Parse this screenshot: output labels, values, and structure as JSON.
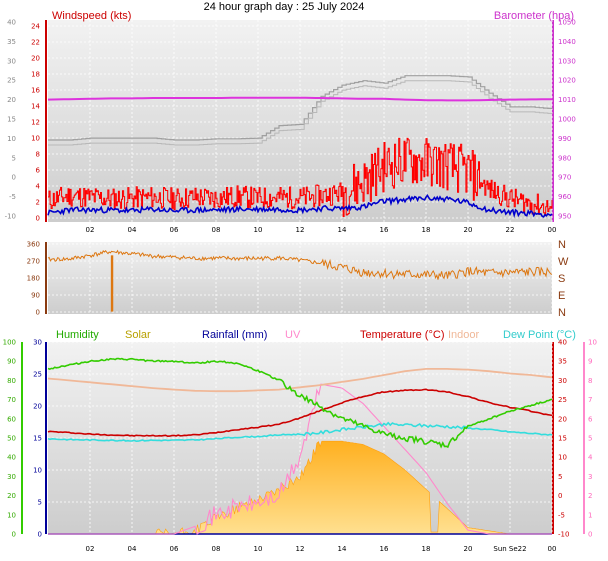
{
  "title": "24 hour graph day : 25 July 2024",
  "colors": {
    "plot_bg_top": "#efefef",
    "plot_bg_bottom": "#cfcfcf",
    "wind_axis": "#cc0000",
    "baro_axis": "#cc33cc",
    "gust": "#ff0000",
    "wind": "#0000cc",
    "baro": "#dd33dd",
    "gray": "#a0a0a0",
    "direction": "#dd7711",
    "humidity": "#33cc00",
    "solar": "#ffc040",
    "rain": "#000099",
    "uv": "#ff88cc",
    "temp": "#cc0000",
    "indoor": "#f0b898",
    "dew": "#33dddd"
  },
  "chart_data": [
    {
      "type": "line",
      "name": "wind-barometer",
      "left_label": "Windspeed (kts)",
      "right_label": "Barometer (hpa)",
      "x_ticks": [
        "02",
        "04",
        "06",
        "08",
        "10",
        "12",
        "14",
        "16",
        "18",
        "20",
        "22",
        "00"
      ],
      "left_ticks": [
        24,
        22,
        20,
        18,
        16,
        14,
        12,
        10,
        8,
        6,
        4,
        2,
        0
      ],
      "left_gray_ticks": [
        40,
        35,
        30,
        25,
        20,
        15,
        10,
        5,
        0,
        -5,
        -10
      ],
      "right_ticks": [
        1050,
        1040,
        1030,
        1020,
        1010,
        1000,
        990,
        980,
        970,
        960,
        950
      ],
      "x": [
        0,
        1,
        2,
        3,
        4,
        5,
        6,
        7,
        8,
        9,
        10,
        11,
        12,
        13,
        14,
        15,
        16,
        17,
        18,
        19,
        20,
        21,
        22,
        23,
        24
      ],
      "series": [
        {
          "name": "gust",
          "values": [
            2.2,
            2.8,
            2.6,
            2.4,
            2.5,
            2.6,
            2.4,
            2.6,
            2.5,
            2.7,
            2.5,
            2.6,
            2.5,
            2.8,
            3.2,
            4.6,
            6.5,
            7.2,
            7.0,
            6.6,
            5.8,
            3.6,
            2.4,
            1.8,
            1.2
          ]
        },
        {
          "name": "wind",
          "values": [
            0.6,
            1.0,
            1.0,
            1.0,
            0.9,
            1.1,
            0.9,
            1.0,
            1.0,
            1.1,
            1.1,
            1.1,
            1.0,
            1.2,
            1.2,
            1.4,
            2.1,
            2.3,
            2.5,
            2.4,
            1.9,
            1.0,
            0.7,
            0.6,
            0.4
          ]
        },
        {
          "name": "barometer",
          "values": [
            1010.0,
            1010.2,
            1010.4,
            1010.6,
            1010.6,
            1010.8,
            1010.8,
            1010.8,
            1010.8,
            1011.0,
            1011.0,
            1011.0,
            1011.0,
            1010.8,
            1010.6,
            1010.4,
            1010.4,
            1010.0,
            1009.7,
            1009.6,
            1009.6,
            1009.8,
            1010.0,
            1010.1,
            1010.2
          ]
        },
        {
          "name": "gray",
          "values": [
            12.5,
            12.5,
            12.8,
            12.8,
            12.8,
            12.8,
            12.5,
            12.5,
            12.7,
            12.7,
            12.8,
            14.8,
            15.0,
            19.5,
            21.3,
            22.0,
            21.6,
            22.8,
            22.8,
            22.8,
            22.6,
            20.0,
            17.8,
            17.8,
            17.5
          ]
        }
      ]
    },
    {
      "type": "line",
      "name": "wind-direction",
      "left_ticks": [
        360,
        270,
        180,
        90,
        0
      ],
      "direction_labels": [
        "N",
        "W",
        "S",
        "E",
        "N"
      ],
      "x": [
        0,
        1,
        2,
        3,
        4,
        5,
        6,
        7,
        8,
        9,
        10,
        11,
        12,
        13,
        14,
        15,
        16,
        17,
        18,
        19,
        20,
        21,
        22,
        23,
        24
      ],
      "series": [
        {
          "name": "direction",
          "values": [
            278,
            280,
            300,
            320,
            308,
            296,
            290,
            284,
            285,
            283,
            284,
            286,
            274,
            258,
            235,
            210,
            205,
            200,
            197,
            190,
            215,
            205,
            208,
            212,
            210
          ]
        }
      ]
    },
    {
      "type": "line",
      "name": "temperature-humidity",
      "headers": [
        "Humidity",
        "Solar",
        "Rainfall (mm)",
        "UV",
        "Temperature (°C)",
        "Indoor",
        "Dew Point (°C)"
      ],
      "far_left_ticks": [
        100,
        90,
        80,
        70,
        60,
        50,
        40,
        30,
        20,
        10,
        0
      ],
      "left_ticks": [
        30,
        25,
        20,
        15,
        10,
        5,
        0
      ],
      "right_ticks": [
        40,
        35,
        30,
        25,
        20,
        15,
        10,
        5,
        0,
        -5,
        -10
      ],
      "far_right_ticks": [
        10,
        9,
        8,
        7,
        6,
        5,
        4,
        3,
        2,
        1,
        0
      ],
      "x_ticks": [
        "02",
        "04",
        "06",
        "08",
        "10",
        "12",
        "14",
        "16",
        "18",
        "20",
        "Sun Se22",
        "00"
      ],
      "x": [
        0,
        1,
        2,
        3,
        4,
        5,
        6,
        7,
        8,
        9,
        10,
        11,
        12,
        13,
        14,
        15,
        16,
        17,
        18,
        19,
        20,
        21,
        22,
        23,
        24
      ],
      "series": [
        {
          "name": "humidity",
          "values": [
            86,
            88,
            90,
            91,
            91,
            90,
            90,
            89,
            90,
            89,
            85,
            80,
            72,
            66,
            60,
            56,
            52,
            50,
            48,
            46,
            56,
            60,
            64,
            67,
            70
          ]
        },
        {
          "name": "temperature",
          "values": [
            16.7,
            16.4,
            16.0,
            15.8,
            15.6,
            15.6,
            15.6,
            15.8,
            16.4,
            17.2,
            17.8,
            18.6,
            20.2,
            22.2,
            24.2,
            25.8,
            27.0,
            27.4,
            27.6,
            27.0,
            25.8,
            24.2,
            23.0,
            22.0,
            20.8
          ]
        },
        {
          "name": "dew_point",
          "values": [
            14.8,
            14.6,
            14.5,
            14.4,
            14.3,
            14.4,
            14.4,
            14.5,
            14.8,
            15.2,
            15.4,
            15.8,
            16.0,
            16.4,
            17.2,
            17.8,
            18.6,
            18.4,
            18.2,
            18.0,
            17.6,
            17.2,
            16.6,
            16.2,
            15.8
          ]
        },
        {
          "name": "indoor",
          "values": [
            30.5,
            30.0,
            29.5,
            29.0,
            28.5,
            28.0,
            27.6,
            27.3,
            27.2,
            27.2,
            27.4,
            27.6,
            28.2,
            28.8,
            29.6,
            30.4,
            31.4,
            32.4,
            33.0,
            33.0,
            32.8,
            32.4,
            31.8,
            31.4,
            30.8
          ]
        },
        {
          "name": "solar",
          "values": [
            0,
            0,
            0,
            0,
            0,
            0,
            0,
            0.5,
            2.5,
            4.0,
            5.5,
            7.0,
            9.0,
            14.5,
            14.5,
            14.0,
            12.5,
            10.0,
            7.0,
            4.0,
            1.0,
            0.5,
            0,
            0,
            0
          ]
        },
        {
          "name": "uv",
          "values": [
            0,
            0,
            0,
            0,
            0,
            0,
            0,
            0.4,
            1.0,
            1.4,
            1.6,
            2.0,
            4.0,
            7.8,
            7.6,
            6.8,
            5.6,
            4.4,
            3.2,
            1.6,
            0.2,
            0,
            0,
            0,
            0
          ]
        },
        {
          "name": "rain",
          "values": [
            0,
            0,
            0,
            0,
            0,
            0,
            0,
            0,
            0,
            0,
            0,
            0,
            0,
            0,
            0,
            0,
            0,
            0,
            0,
            0,
            0,
            0,
            0,
            0,
            0
          ]
        }
      ]
    }
  ]
}
